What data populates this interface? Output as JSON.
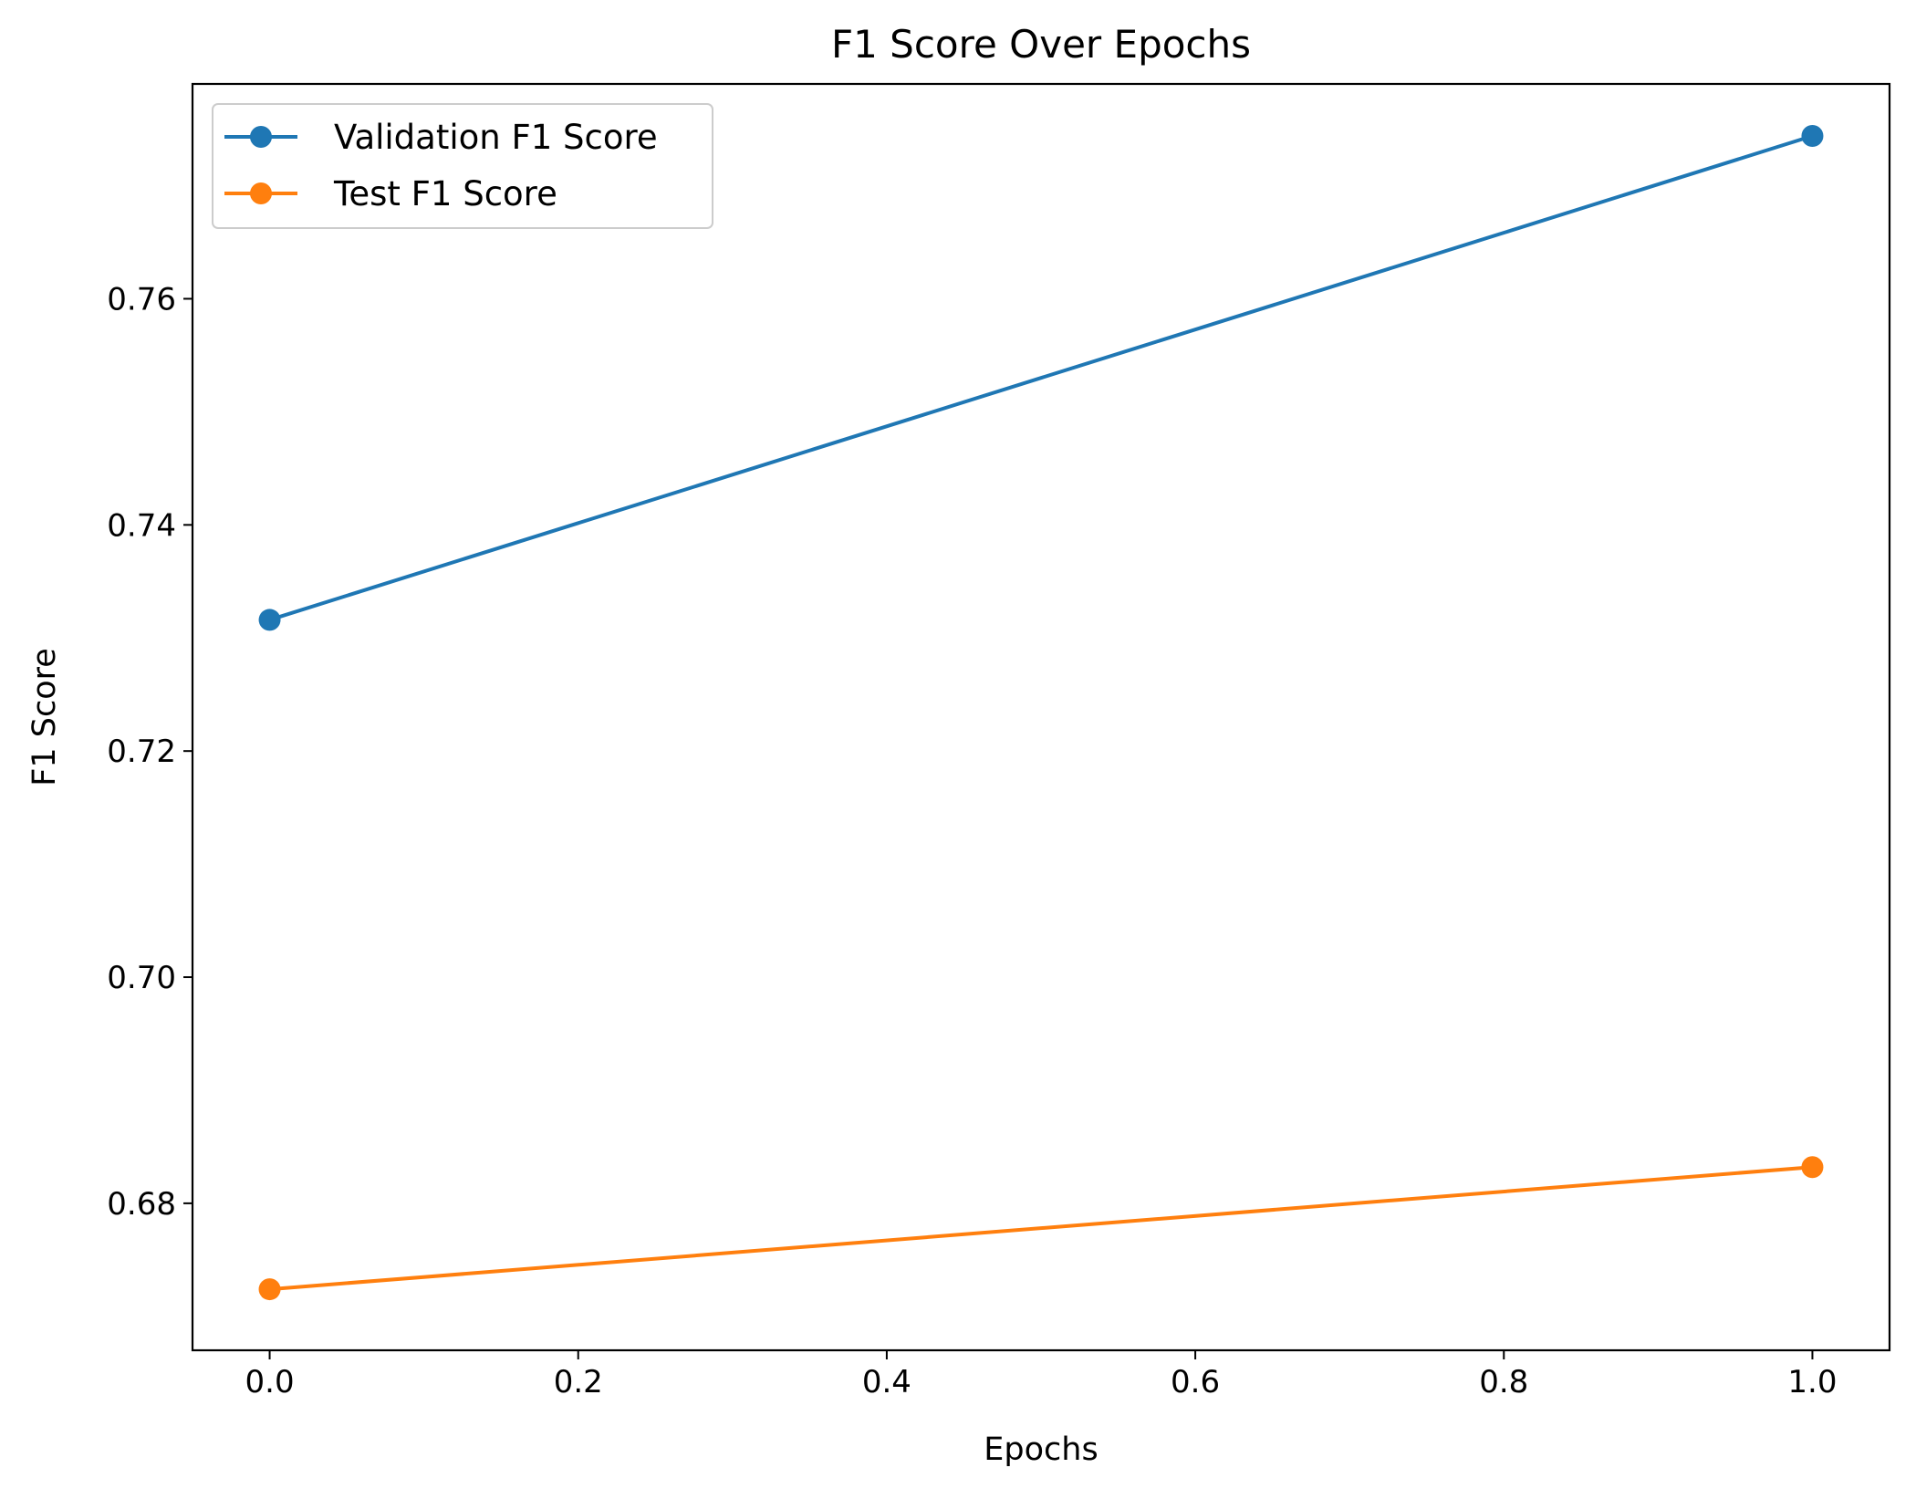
{
  "chart_data": {
    "type": "line",
    "title": "F1 Score Over Epochs",
    "xlabel": "Epochs",
    "ylabel": "F1 Score",
    "xlim": [
      -0.05,
      1.05
    ],
    "ylim": [
      0.667,
      0.779
    ],
    "xticks": [
      0.0,
      0.2,
      0.4,
      0.6,
      0.8,
      1.0
    ],
    "xtick_labels": [
      "0.0",
      "0.2",
      "0.4",
      "0.6",
      "0.8",
      "1.0"
    ],
    "yticks": [
      0.68,
      0.7,
      0.72,
      0.74,
      0.76
    ],
    "ytick_labels": [
      "0.68",
      "0.70",
      "0.72",
      "0.74",
      "0.76"
    ],
    "grid": false,
    "legend_position": "top-left",
    "series": [
      {
        "name": "Validation F1 Score",
        "color": "#1f77b4",
        "marker": "circle",
        "x": [
          0,
          1
        ],
        "y": [
          0.7316,
          0.7744
        ]
      },
      {
        "name": "Test F1 Score",
        "color": "#ff7f0e",
        "marker": "circle",
        "x": [
          0,
          1
        ],
        "y": [
          0.6724,
          0.6832
        ]
      }
    ]
  }
}
